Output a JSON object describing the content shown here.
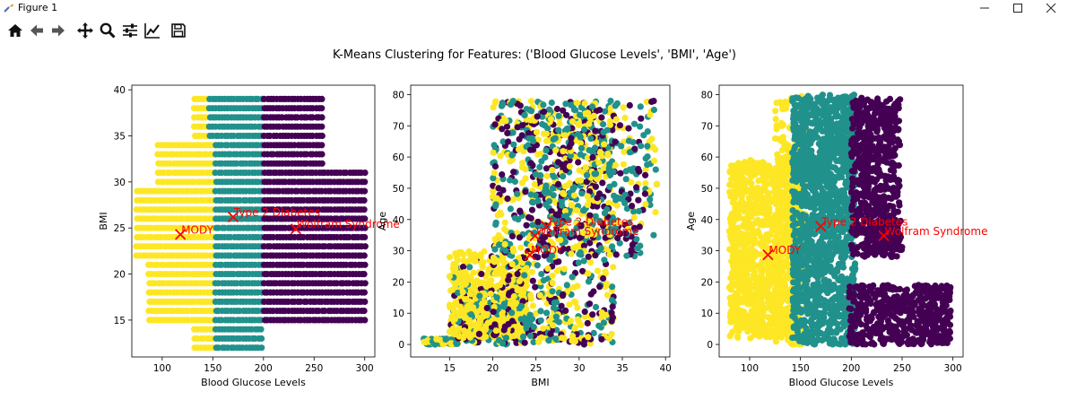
{
  "window": {
    "title": "Figure 1",
    "minimize_icon": "minimize-icon",
    "maximize_icon": "maximize-icon",
    "close_icon": "close-icon"
  },
  "toolbar": {
    "buttons": [
      {
        "name": "home-button",
        "icon": "home-icon"
      },
      {
        "name": "back-button",
        "icon": "arrow-left-icon"
      },
      {
        "name": "forward-button",
        "icon": "arrow-right-icon"
      },
      {
        "name": "pan-button",
        "icon": "move-icon"
      },
      {
        "name": "zoom-button",
        "icon": "magnifier-icon"
      },
      {
        "name": "subplots-button",
        "icon": "sliders-icon"
      },
      {
        "name": "axes-button",
        "icon": "line-chart-icon"
      },
      {
        "name": "save-button",
        "icon": "floppy-icon"
      }
    ]
  },
  "figure": {
    "suptitle": "K-Means Clustering for Features: ('Blood Glucose Levels', 'BMI', 'Age')"
  },
  "colors": {
    "cluster_yellow": "#fde725",
    "cluster_teal": "#21918c",
    "cluster_purple": "#440154",
    "centroid": "#ff0000"
  },
  "chart_data": [
    {
      "type": "scatter",
      "title": "",
      "xlabel": "Blood Glucose Levels",
      "ylabel": "BMI",
      "xlim": [
        70,
        310
      ],
      "ylim": [
        11,
        40.5
      ],
      "xticks": [
        100,
        150,
        200,
        250,
        300
      ],
      "yticks": [
        15,
        20,
        25,
        30,
        35,
        40
      ],
      "grid": false,
      "series": [
        {
          "color": "#fde725",
          "x_range": [
            75,
            152
          ],
          "y_range": [
            12,
            39
          ],
          "points": [
            [
              100,
              30
            ],
            [
              90,
              27
            ],
            [
              120,
              22
            ],
            [
              140,
              35
            ],
            [
              130,
              18
            ]
          ]
        },
        {
          "color": "#21918c",
          "x_range": [
            138,
            205
          ],
          "y_range": [
            12,
            39
          ],
          "points": [
            [
              160,
              30
            ],
            [
              180,
              25
            ],
            [
              170,
              14
            ],
            [
              190,
              38
            ]
          ]
        },
        {
          "color": "#440154",
          "x_range": [
            195,
            300
          ],
          "y_range": [
            15,
            39
          ],
          "points": [
            [
              220,
              32
            ],
            [
              250,
              22
            ],
            [
              280,
              18
            ],
            [
              230,
              37
            ]
          ]
        }
      ],
      "centroids": [
        {
          "label": "MODY",
          "x": 118,
          "y": 24.3
        },
        {
          "label": "Type 2 Diabetes",
          "x": 170,
          "y": 26.2
        },
        {
          "label": "Wolfram Syndrome",
          "x": 232,
          "y": 24.9
        }
      ]
    },
    {
      "type": "scatter",
      "title": "",
      "xlabel": "BMI",
      "ylabel": "Age",
      "xlim": [
        10.5,
        40.5
      ],
      "ylim": [
        -4,
        83
      ],
      "xticks": [
        15,
        20,
        25,
        30,
        35,
        40
      ],
      "yticks": [
        0,
        10,
        20,
        30,
        40,
        50,
        60,
        70,
        80
      ],
      "grid": false,
      "series": [
        {
          "color": "#fde725",
          "x_range": [
            12,
            39
          ],
          "y_range": [
            0,
            80
          ]
        },
        {
          "color": "#21918c",
          "x_range": [
            12,
            39
          ],
          "y_range": [
            0,
            80
          ]
        },
        {
          "color": "#440154",
          "x_range": [
            15,
            37
          ],
          "y_range": [
            0,
            79
          ]
        }
      ],
      "centroids": [
        {
          "label": "MODY",
          "x": 24.3,
          "y": 28.7
        },
        {
          "label": "Type 2 Diabetes",
          "x": 26.2,
          "y": 37.8
        },
        {
          "label": "Wolfram Syndrome",
          "x": 24.9,
          "y": 34.8
        }
      ]
    },
    {
      "type": "scatter",
      "title": "",
      "xlabel": "Blood Glucose Levels",
      "ylabel": "Age",
      "xlim": [
        70,
        310
      ],
      "ylim": [
        -4,
        83
      ],
      "xticks": [
        100,
        150,
        200,
        250,
        300
      ],
      "yticks": [
        0,
        10,
        20,
        30,
        40,
        50,
        60,
        70,
        80
      ],
      "grid": false,
      "series": [
        {
          "color": "#fde725",
          "x_range": [
            75,
            155
          ],
          "y_range": [
            0,
            80
          ]
        },
        {
          "color": "#21918c",
          "x_range": [
            140,
            205
          ],
          "y_range": [
            0,
            80
          ]
        },
        {
          "color": "#440154",
          "x_range": [
            198,
            300
          ],
          "y_range": [
            0,
            79
          ]
        }
      ],
      "centroids": [
        {
          "label": "MODY",
          "x": 118,
          "y": 28.7
        },
        {
          "label": "Type 2 Diabetes",
          "x": 170,
          "y": 37.8
        },
        {
          "label": "Wolfram Syndrome",
          "x": 232,
          "y": 34.8
        }
      ]
    }
  ]
}
